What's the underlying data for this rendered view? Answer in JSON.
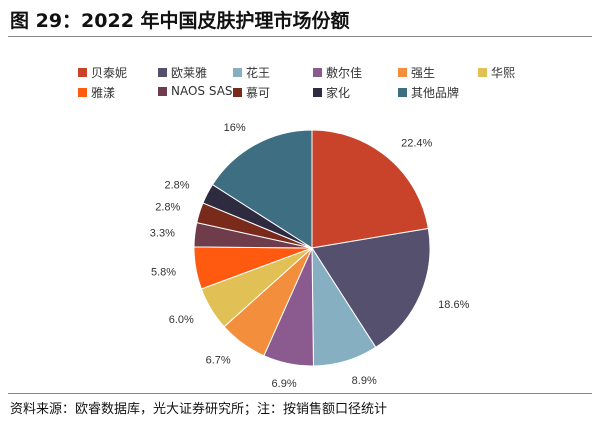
{
  "title": "图 29：2022 年中国皮肤护理市场份额",
  "source": "资料来源：欧睿数据库，光大证券研究所；注：按销售额口径统计",
  "chart_data": {
    "type": "pie",
    "start": "top",
    "direction": "clockwise",
    "legend_position": "top",
    "slices": [
      {
        "name": "贝泰妮",
        "value": 22.4,
        "label": "22.4%",
        "color": "#C8432A"
      },
      {
        "name": "欧莱雅",
        "value": 18.6,
        "label": "18.6%",
        "color": "#56506F"
      },
      {
        "name": "花王",
        "value": 8.9,
        "label": "8.9%",
        "color": "#86AFC2"
      },
      {
        "name": "敷尔佳",
        "value": 6.9,
        "label": "6.9%",
        "color": "#8B5A8F"
      },
      {
        "name": "强生",
        "value": 6.7,
        "label": "6.7%",
        "color": "#F28E3C"
      },
      {
        "name": "华熙",
        "value": 6.0,
        "label": "6.0%",
        "color": "#E1C055"
      },
      {
        "name": "雅漾",
        "value": 5.8,
        "label": "5.8%",
        "color": "#FF5A0F"
      },
      {
        "name": "NAOS SAS",
        "value": 3.3,
        "label": "3.3%",
        "color": "#6E3C4A"
      },
      {
        "name": "慕可",
        "value": 2.8,
        "label": "2.8%",
        "color": "#7A2A1A"
      },
      {
        "name": "家化",
        "value": 2.8,
        "label": "2.8%",
        "color": "#2E2B40"
      },
      {
        "name": "其他品牌",
        "value": 16,
        "label": "16%",
        "color": "#3E6E82"
      }
    ]
  }
}
